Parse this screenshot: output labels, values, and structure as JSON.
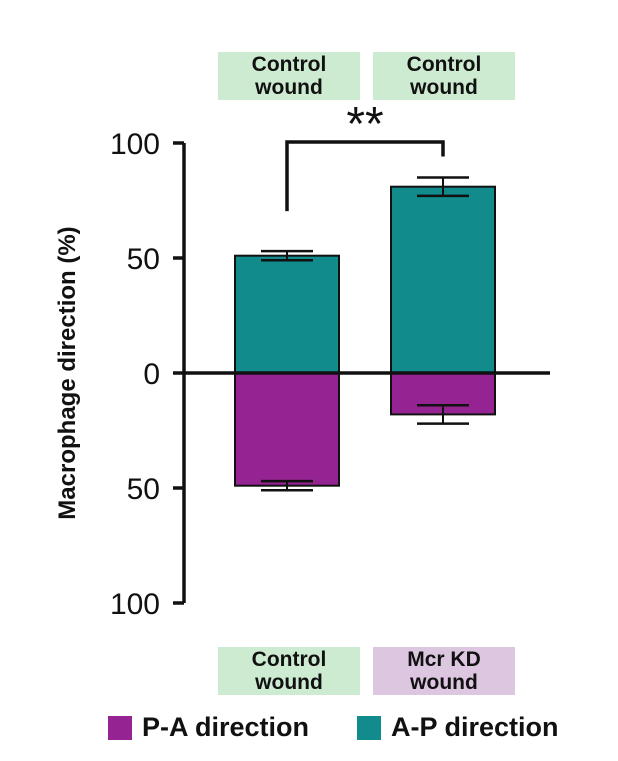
{
  "chart_data": {
    "type": "bar",
    "ylabel": "Macrophage direction (%)",
    "yticks": [
      {
        "value": 100,
        "label": "100"
      },
      {
        "value": 50,
        "label": "50"
      },
      {
        "value": 0,
        "label": "0"
      },
      {
        "value": -50,
        "label": "50"
      },
      {
        "value": -100,
        "label": "100"
      }
    ],
    "ylim": [
      -100,
      100
    ],
    "groups": [
      {
        "top_label": "Control\nwound",
        "bottom_label": "Control\nwound",
        "bottom_label_color": "#cdebd0",
        "ap_value": 51,
        "ap_error": 2,
        "pa_value": -49,
        "pa_error": 2
      },
      {
        "top_label": "Control\nwound",
        "bottom_label": "Mcr KD\nwound",
        "bottom_label_color": "#dcc6e0",
        "ap_value": 81,
        "ap_error": 4,
        "pa_value": -18,
        "pa_error": 4
      }
    ],
    "top_label_color": "#cdebd0",
    "series": [
      {
        "name": "P-A direction",
        "color": "#952391"
      },
      {
        "name": "A-P direction",
        "color": "#118b8c"
      }
    ],
    "significance": "**"
  }
}
